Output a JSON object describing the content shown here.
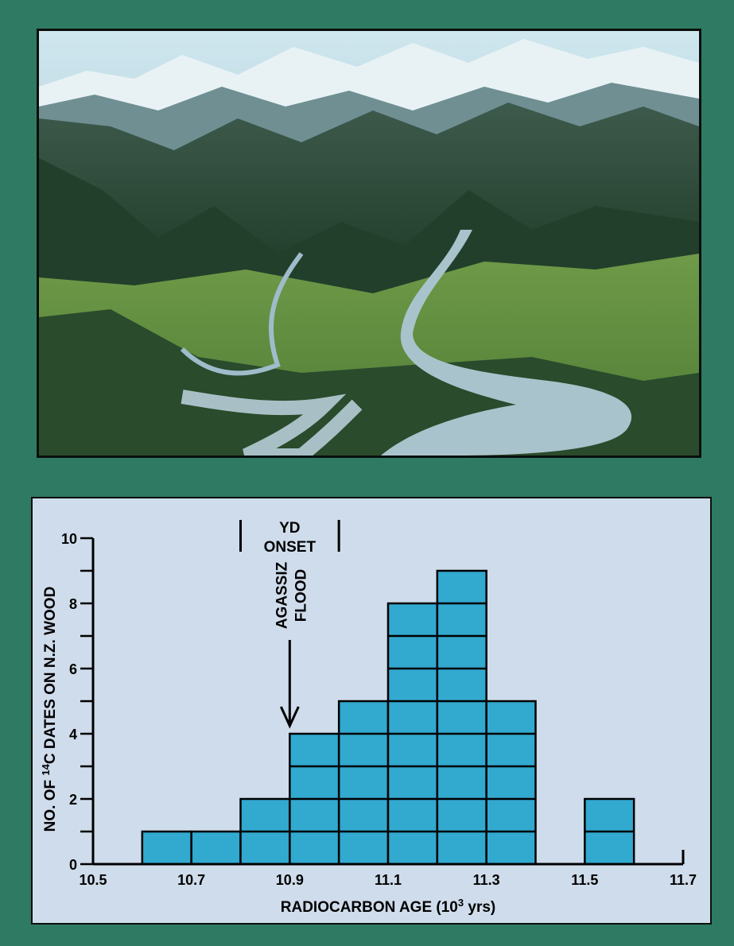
{
  "photo": {
    "subject": "aerial-landscape"
  },
  "chart_data": {
    "type": "bar",
    "title": "",
    "xlabel": "RADIOCARBON AGE (10",
    "xlabel_sup": "3",
    "xlabel_suffix": " yrs)",
    "ylabel": "NO. OF ",
    "ylabel_sup": "14",
    "ylabel_suffix": "C DATES ON N.Z. WOOD",
    "xlim": [
      10.5,
      11.7
    ],
    "ylim": [
      0,
      10
    ],
    "x_ticks": [
      "10.5",
      "10.7",
      "10.9",
      "11.1",
      "11.3",
      "11.5",
      "11.7"
    ],
    "y_ticks": [
      "0",
      "2",
      "4",
      "6",
      "8",
      "10"
    ],
    "bin_width": 0.1,
    "bins": [
      {
        "x": 10.6,
        "value": 1
      },
      {
        "x": 10.7,
        "value": 1
      },
      {
        "x": 10.8,
        "value": 2
      },
      {
        "x": 10.9,
        "value": 4
      },
      {
        "x": 11.0,
        "value": 5
      },
      {
        "x": 11.1,
        "value": 8
      },
      {
        "x": 11.2,
        "value": 9
      },
      {
        "x": 11.3,
        "value": 5
      },
      {
        "x": 11.5,
        "value": 2
      }
    ],
    "bar_color": "#32a9cf",
    "annotations": {
      "yd_line1": "YD",
      "yd_line2": "ONSET",
      "yd_range": [
        10.8,
        11.0
      ],
      "agassiz_line1": "AGASSIZ",
      "agassiz_line2": "FLOOD",
      "agassiz_x": 10.9
    }
  }
}
